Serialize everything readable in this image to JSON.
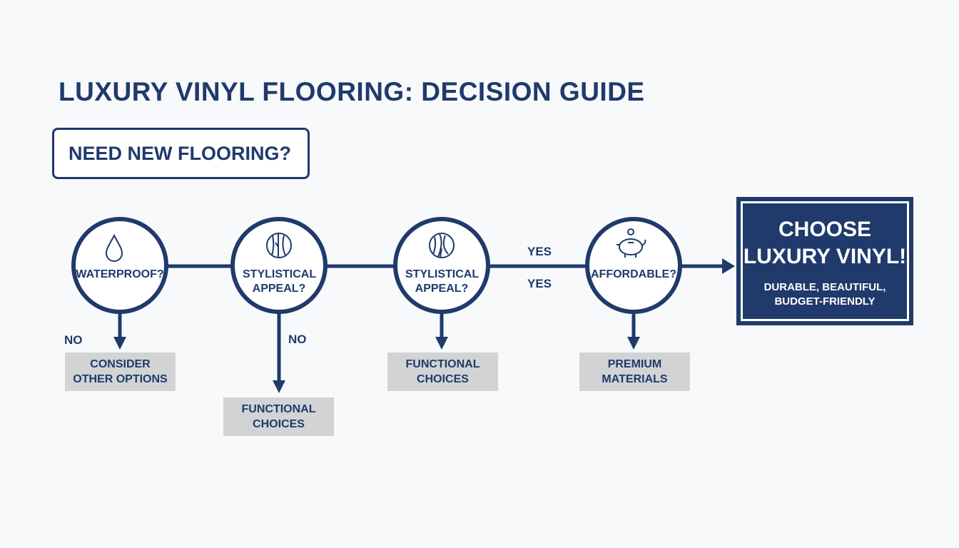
{
  "title": "LUXURY VINYL FLOORING: DECISION GUIDE",
  "start": "NEED NEW FLOORING?",
  "colors": {
    "primary": "#1f3a6b",
    "outcome_bg": "#d2d3d5",
    "background": "#f8f9fa"
  },
  "nodes": [
    {
      "label": "WATERPROOF?",
      "icon": "water-drop-icon"
    },
    {
      "label": "STYLISTICAL APPEAL?",
      "icon": "wood-grain-icon"
    },
    {
      "label": "STYLISTICAL APPEAL?",
      "icon": "wood-grain-icon"
    },
    {
      "label": "AFFORDABLE?",
      "icon": "piggy-bank-icon"
    }
  ],
  "outcomes": [
    "CONSIDER\nOTHER OPTIONS",
    "FUNCTIONAL\nCHOICES",
    "FUNCTIONAL\nCHOICES",
    "PREMIUM\nMATERIALS"
  ],
  "edge_labels": {
    "no_1": "NO",
    "no_2": "NO",
    "yes_1": "YES",
    "yes_2": "YES"
  },
  "final": {
    "title": "CHOOSE\nLUXURY VINYL!",
    "subtitle": "DURABLE, BEAUTIFUL,\nBUDGET-FRIENDLY"
  }
}
